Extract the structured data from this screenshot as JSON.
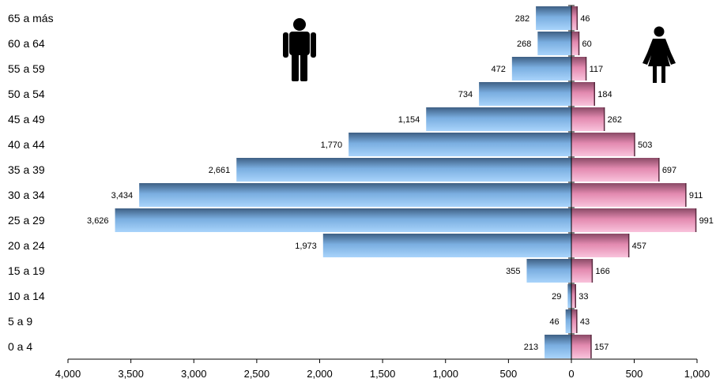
{
  "chart_data": {
    "type": "bar",
    "orientation": "horizontal",
    "layout": "population-pyramid",
    "categories": [
      "65 a más",
      "60 a 64",
      "55 a 59",
      "50 a 54",
      "45 a 49",
      "40 a 44",
      "35 a 39",
      "30 a 34",
      "25 a 29",
      "20 a 24",
      "15 a 19",
      "10 a 14",
      "5 a 9",
      "0 a 4"
    ],
    "series": [
      {
        "side": "left",
        "icon": "male-figure-icon",
        "color": "#7fb2e3",
        "values": [
          282,
          268,
          472,
          734,
          1154,
          1770,
          2661,
          3434,
          3626,
          1973,
          355,
          29,
          46,
          213
        ],
        "labels": [
          "282",
          "268",
          "472",
          "734",
          "1,154",
          "1,770",
          "2,661",
          "3,434",
          "3,626",
          "1,973",
          "355",
          "29",
          "46",
          "213"
        ]
      },
      {
        "side": "right",
        "icon": "female-figure-icon",
        "color": "#e890b4",
        "values": [
          46,
          60,
          117,
          184,
          262,
          503,
          697,
          911,
          991,
          457,
          166,
          33,
          43,
          157
        ],
        "labels": [
          "46",
          "60",
          "117",
          "184",
          "262",
          "503",
          "697",
          "911",
          "991",
          "457",
          "166",
          "33",
          "43",
          "157"
        ]
      }
    ],
    "left_axis": {
      "range": [
        0,
        4000
      ],
      "ticks": [
        "4,000",
        "3,500",
        "3,000",
        "2,500",
        "2,000",
        "1,500",
        "1,000",
        "500",
        "0"
      ]
    },
    "right_axis": {
      "range": [
        0,
        1000
      ],
      "ticks": [
        "500",
        "1,000"
      ]
    },
    "grid": false,
    "legend": "none"
  }
}
